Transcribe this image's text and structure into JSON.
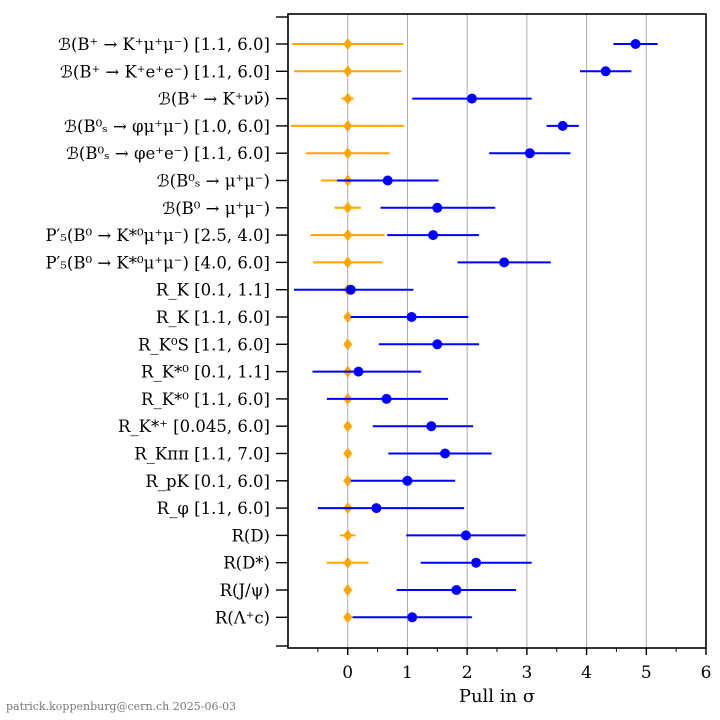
{
  "chart_data": {
    "type": "scatter",
    "xlabel": "Pull in σ",
    "xlim": [
      -1.0,
      6.0
    ],
    "xticks": [
      "0",
      "1",
      "2",
      "3",
      "4",
      "5",
      "6"
    ],
    "grid": "vertical lines at integer ticks",
    "credit": "patrick.koppenburg@cern.ch  2025-06-03",
    "colors": {
      "reference": "#ffa500",
      "measurement": "#0000ff",
      "grid": "#aaaaaa"
    },
    "categories": [
      "ℬ(B⁺ → K⁺μ⁺μ⁻) [1.1, 6.0]",
      "ℬ(B⁺ → K⁺e⁺e⁻) [1.1, 6.0]",
      "ℬ(B⁺ → K⁺νν̄)",
      "ℬ(B⁰ₛ → φμ⁺μ⁻) [1.0, 6.0]",
      "ℬ(B⁰ₛ → φe⁺e⁻) [1.1, 6.0]",
      "ℬ(B⁰ₛ → μ⁺μ⁻)",
      "ℬ(B⁰ → μ⁺μ⁻)",
      "P′₅(B⁰ → K*⁰μ⁺μ⁻) [2.5, 4.0]",
      "P′₅(B⁰ → K*⁰μ⁺μ⁻) [4.0, 6.0]",
      "R_K [0.1, 1.1]",
      "R_K [1.1, 6.0]",
      "R_K⁰S [1.1, 6.0]",
      "R_K*⁰ [0.1, 1.1]",
      "R_K*⁰ [1.1, 6.0]",
      "R_K*⁺ [0.045, 6.0]",
      "R_Kππ [1.1, 7.0]",
      "R_pK [0.1, 6.0]",
      "R_φ [1.1, 6.0]",
      "R(D)",
      "R(D*)",
      "R(J/ψ)",
      "R(Λ⁺c)"
    ],
    "series": [
      {
        "marker": "diamond",
        "values": [
          0,
          0,
          0,
          0,
          0,
          0,
          0,
          0,
          0,
          0,
          0,
          0,
          0,
          0,
          0,
          0,
          0,
          0,
          0,
          0,
          0,
          0
        ],
        "err_lo": [
          0.93,
          0.9,
          0.1,
          0.95,
          0.7,
          0.45,
          0.22,
          0.62,
          0.58,
          0.1,
          0.05,
          0.05,
          0.1,
          0.05,
          0.05,
          0.05,
          0.05,
          0.05,
          0.13,
          0.35,
          0.05,
          0.05
        ],
        "err_hi": [
          0.93,
          0.9,
          0.1,
          0.95,
          0.7,
          0.45,
          0.22,
          0.62,
          0.58,
          0.1,
          0.05,
          0.05,
          0.1,
          0.05,
          0.05,
          0.05,
          0.05,
          0.05,
          0.13,
          0.35,
          0.05,
          0.05
        ]
      },
      {
        "marker": "circle",
        "values": [
          4.82,
          4.32,
          2.08,
          3.6,
          3.05,
          0.67,
          1.5,
          1.43,
          2.62,
          0.05,
          1.07,
          1.5,
          0.18,
          0.65,
          1.4,
          1.63,
          1.0,
          0.48,
          1.98,
          2.15,
          1.82,
          1.08
        ],
        "err_lo": [
          0.37,
          0.43,
          1.0,
          0.27,
          0.68,
          0.85,
          0.95,
          0.77,
          0.78,
          0.95,
          1.02,
          0.98,
          0.77,
          1.0,
          0.98,
          0.95,
          0.95,
          0.98,
          1.0,
          0.93,
          1.0,
          1.0
        ],
        "err_hi": [
          0.37,
          0.43,
          1.0,
          0.27,
          0.68,
          0.85,
          0.97,
          0.77,
          0.78,
          1.05,
          0.95,
          0.7,
          1.05,
          1.03,
          0.7,
          0.78,
          0.8,
          1.47,
          1.0,
          0.93,
          1.0,
          1.0
        ]
      }
    ]
  }
}
